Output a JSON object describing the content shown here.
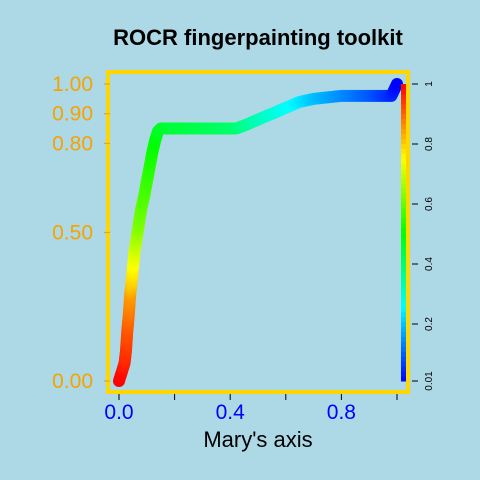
{
  "chart_data": {
    "type": "line",
    "title": "ROCR fingerpainting toolkit",
    "xlabel": "Mary's axis",
    "ylabel": "",
    "xlim": [
      0,
      1
    ],
    "ylim": [
      0,
      1
    ],
    "x_ticks": [
      "0.0",
      "0.4",
      "0.8"
    ],
    "y_ticks": [
      "0.00",
      "0.50",
      "0.80",
      "0.90",
      "1.00"
    ],
    "colorbar_ticks": [
      "0.01",
      "0.2",
      "0.4",
      "0.6",
      "0.8",
      "1"
    ],
    "colorbar_range": [
      0.01,
      1
    ],
    "border_color": "#ffd700",
    "ytick_color": "#f5a300",
    "xtick_color": "#0000ff",
    "background": "#add8e6",
    "grid": false,
    "curve": {
      "x": [
        0.0,
        0.01,
        0.02,
        0.025,
        0.03,
        0.035,
        0.04,
        0.045,
        0.05,
        0.055,
        0.06,
        0.065,
        0.07,
        0.08,
        0.09,
        0.1,
        0.11,
        0.12,
        0.13,
        0.14,
        0.15,
        0.2,
        0.3,
        0.42,
        0.45,
        0.5,
        0.55,
        0.6,
        0.65,
        0.7,
        0.8,
        0.9,
        0.98,
        1.0
      ],
      "y": [
        0.0,
        0.03,
        0.06,
        0.1,
        0.17,
        0.22,
        0.29,
        0.33,
        0.38,
        0.43,
        0.46,
        0.49,
        0.52,
        0.58,
        0.62,
        0.67,
        0.72,
        0.77,
        0.81,
        0.84,
        0.85,
        0.85,
        0.85,
        0.85,
        0.86,
        0.88,
        0.9,
        0.92,
        0.94,
        0.95,
        0.96,
        0.96,
        0.96,
        1.0
      ],
      "cutoff": [
        1.0,
        0.99,
        0.97,
        0.95,
        0.92,
        0.89,
        0.85,
        0.8,
        0.76,
        0.72,
        0.69,
        0.66,
        0.63,
        0.6,
        0.58,
        0.56,
        0.54,
        0.52,
        0.5,
        0.48,
        0.47,
        0.45,
        0.43,
        0.4,
        0.37,
        0.33,
        0.3,
        0.27,
        0.24,
        0.2,
        0.15,
        0.1,
        0.05,
        0.01
      ]
    }
  }
}
